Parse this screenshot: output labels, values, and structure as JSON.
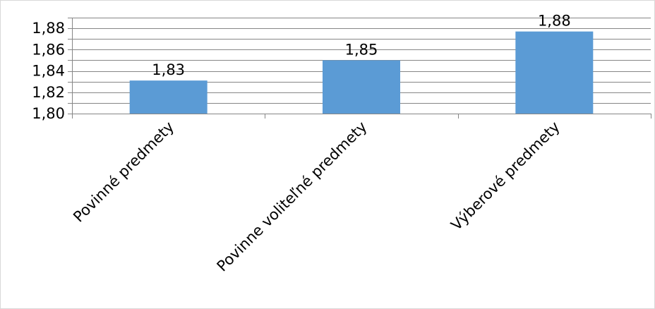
{
  "chart_data": {
    "type": "bar",
    "categories": [
      "Povinné predmety",
      "Povinne voliteľné predmety",
      "Výberové predmety"
    ],
    "values": [
      1.831,
      1.85,
      1.877
    ],
    "data_labels": [
      "1,83",
      "1,85",
      "1,88"
    ],
    "ylim": [
      1.8,
      1.89
    ],
    "yticks": [
      1.8,
      1.82,
      1.84,
      1.86,
      1.88
    ],
    "ytick_labels": [
      "1,80",
      "1,82",
      "1,84",
      "1,86",
      "1,88"
    ],
    "grid": true,
    "legend": "none",
    "bar_color": "#5b9bd5",
    "grid_color": "#868686",
    "axis_color": "#868686"
  }
}
